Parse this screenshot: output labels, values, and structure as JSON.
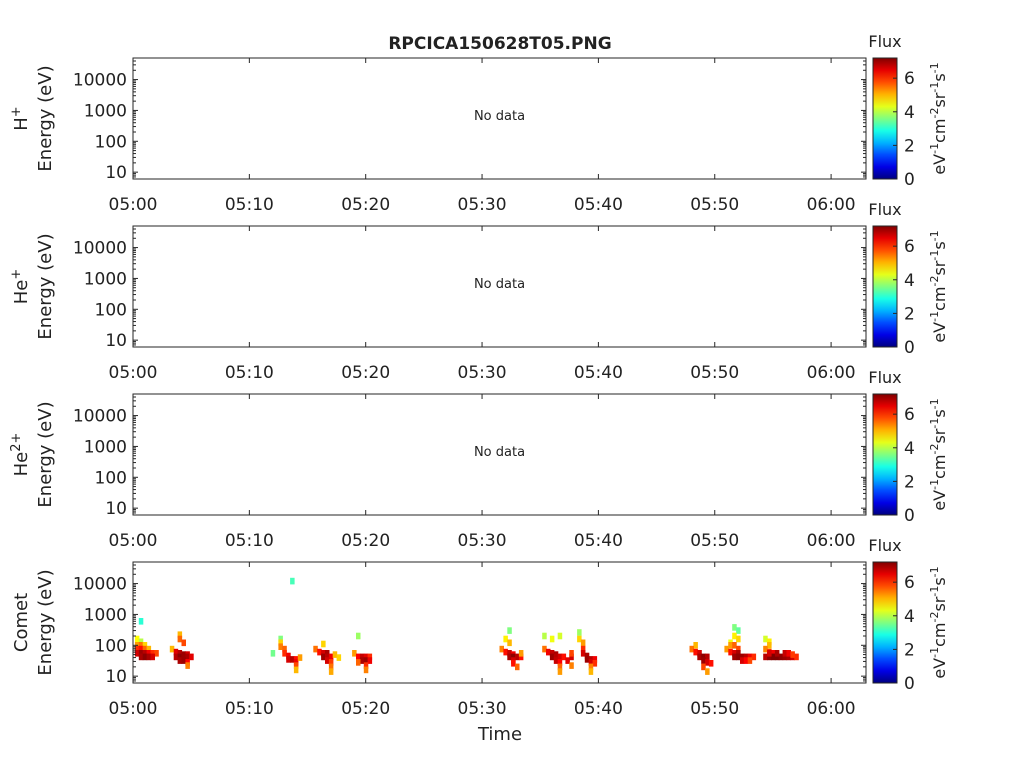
{
  "title": "RPCICA150628T05.PNG",
  "xlabel": "Time",
  "colorbar": {
    "title": "Flux",
    "unit_parts": [
      "eV",
      "-1",
      "cm",
      "-2",
      "sr",
      "-1",
      "s",
      "-1"
    ],
    "ticks": [
      "0",
      "2",
      "4",
      "6"
    ],
    "range": [
      0,
      7.2
    ],
    "colormap": "jet"
  },
  "chart_data": [
    {
      "type": "heatmap",
      "species": "H",
      "species_sup": "+",
      "ylabel": "Energy (eV)",
      "yscale": "log",
      "ylim": [
        6,
        50000
      ],
      "yticks": [
        "10",
        "100",
        "1000",
        "10000"
      ],
      "xlim": [
        "05:00",
        "06:03"
      ],
      "xticks": [
        "05:00",
        "05:10",
        "05:20",
        "05:30",
        "05:40",
        "05:50",
        "06:00"
      ],
      "annotation": "No data",
      "points": []
    },
    {
      "type": "heatmap",
      "species": "He",
      "species_sup": "+",
      "ylabel": "Energy (eV)",
      "yscale": "log",
      "ylim": [
        6,
        50000
      ],
      "yticks": [
        "10",
        "100",
        "1000",
        "10000"
      ],
      "xlim": [
        "05:00",
        "06:03"
      ],
      "xticks": [
        "05:00",
        "05:10",
        "05:20",
        "05:30",
        "05:40",
        "05:50",
        "06:00"
      ],
      "annotation": "No data",
      "points": []
    },
    {
      "type": "heatmap",
      "species": "He",
      "species_sup": "2+",
      "ylabel": "Energy (eV)",
      "yscale": "log",
      "ylim": [
        6,
        50000
      ],
      "yticks": [
        "10",
        "100",
        "1000",
        "10000"
      ],
      "xlim": [
        "05:00",
        "06:03"
      ],
      "xticks": [
        "05:00",
        "05:10",
        "05:20",
        "05:30",
        "05:40",
        "05:50",
        "06:00"
      ],
      "annotation": "No data",
      "points": []
    },
    {
      "type": "heatmap",
      "species": "Comet",
      "species_sup": "",
      "ylabel": "Energy (eV)",
      "yscale": "log",
      "ylim": [
        6,
        50000
      ],
      "yticks": [
        "10",
        "100",
        "1000",
        "10000"
      ],
      "xlim": [
        "05:00",
        "06:03"
      ],
      "xticks": [
        "05:00",
        "05:10",
        "05:20",
        "05:30",
        "05:40",
        "05:50",
        "06:00"
      ],
      "annotation": "",
      "points": [
        [
          "05:00:40",
          600,
          3.0
        ],
        [
          "05:00:20",
          160,
          4.5
        ],
        [
          "05:00:40",
          130,
          4.0
        ],
        [
          "05:00:20",
          100,
          5.2
        ],
        [
          "05:00:40",
          100,
          5.5
        ],
        [
          "05:01:00",
          100,
          4.8
        ],
        [
          "05:00:20",
          75,
          6.0
        ],
        [
          "05:00:40",
          75,
          6.2
        ],
        [
          "05:01:00",
          75,
          5.6
        ],
        [
          "05:01:20",
          75,
          5.0
        ],
        [
          "05:00:20",
          55,
          6.6
        ],
        [
          "05:00:40",
          55,
          7.0
        ],
        [
          "05:01:00",
          55,
          6.8
        ],
        [
          "05:01:20",
          55,
          6.4
        ],
        [
          "05:01:40",
          55,
          6.0
        ],
        [
          "05:02:00",
          55,
          5.8
        ],
        [
          "05:00:40",
          42,
          6.9
        ],
        [
          "05:01:00",
          42,
          7.1
        ],
        [
          "05:01:20",
          42,
          6.9
        ],
        [
          "05:01:40",
          42,
          6.6
        ],
        [
          "05:04:00",
          220,
          5.0
        ],
        [
          "05:04:00",
          160,
          5.6
        ],
        [
          "05:04:20",
          120,
          5.8
        ],
        [
          "05:03:20",
          75,
          5.0
        ],
        [
          "05:03:40",
          60,
          6.5
        ],
        [
          "05:04:00",
          55,
          6.8
        ],
        [
          "05:04:20",
          50,
          7.0
        ],
        [
          "05:04:40",
          50,
          6.6
        ],
        [
          "05:03:40",
          42,
          6.8
        ],
        [
          "05:04:00",
          42,
          7.1
        ],
        [
          "05:04:20",
          42,
          7.0
        ],
        [
          "05:04:40",
          42,
          6.9
        ],
        [
          "05:05:00",
          42,
          6.5
        ],
        [
          "05:04:00",
          32,
          6.9
        ],
        [
          "05:04:20",
          32,
          7.0
        ],
        [
          "05:04:40",
          28,
          6.3
        ],
        [
          "05:04:40",
          22,
          5.4
        ],
        [
          "05:13:40",
          12000,
          3.2
        ],
        [
          "05:12:00",
          55,
          3.5
        ],
        [
          "05:12:40",
          160,
          3.6
        ],
        [
          "05:12:40",
          120,
          4.8
        ],
        [
          "05:12:40",
          90,
          5.4
        ],
        [
          "05:13:00",
          75,
          5.6
        ],
        [
          "05:13:00",
          55,
          6.0
        ],
        [
          "05:13:20",
          45,
          6.4
        ],
        [
          "05:13:20",
          35,
          6.6
        ],
        [
          "05:13:40",
          35,
          6.8
        ],
        [
          "05:14:00",
          35,
          6.2
        ],
        [
          "05:14:00",
          28,
          6.4
        ],
        [
          "05:14:00",
          22,
          5.8
        ],
        [
          "05:14:00",
          16,
          5.0
        ],
        [
          "05:14:20",
          40,
          5.2
        ],
        [
          "05:16:20",
          110,
          4.8
        ],
        [
          "05:15:40",
          75,
          5.5
        ],
        [
          "05:16:00",
          60,
          6.2
        ],
        [
          "05:16:20",
          55,
          6.6
        ],
        [
          "05:16:40",
          55,
          6.9
        ],
        [
          "05:16:20",
          42,
          7.0
        ],
        [
          "05:16:40",
          42,
          6.8
        ],
        [
          "05:17:00",
          42,
          6.4
        ],
        [
          "05:16:40",
          32,
          6.6
        ],
        [
          "05:17:00",
          28,
          5.9
        ],
        [
          "05:17:00",
          20,
          5.5
        ],
        [
          "05:17:00",
          14,
          5.1
        ],
        [
          "05:17:20",
          50,
          5.0
        ],
        [
          "05:17:40",
          40,
          4.8
        ],
        [
          "05:19:20",
          200,
          3.8
        ],
        [
          "05:19:00",
          55,
          5.2
        ],
        [
          "05:19:20",
          42,
          6.3
        ],
        [
          "05:19:40",
          42,
          6.7
        ],
        [
          "05:20:00",
          42,
          6.5
        ],
        [
          "05:20:20",
          42,
          6.0
        ],
        [
          "05:19:40",
          32,
          6.9
        ],
        [
          "05:20:00",
          32,
          7.0
        ],
        [
          "05:20:20",
          32,
          6.4
        ],
        [
          "05:19:20",
          28,
          5.6
        ],
        [
          "05:20:00",
          22,
          6.0
        ],
        [
          "05:20:00",
          16,
          5.4
        ],
        [
          "05:32:20",
          300,
          3.6
        ],
        [
          "05:32:00",
          160,
          4.6
        ],
        [
          "05:32:20",
          120,
          5.0
        ],
        [
          "05:31:40",
          75,
          5.4
        ],
        [
          "05:32:00",
          60,
          6.2
        ],
        [
          "05:32:20",
          55,
          6.7
        ],
        [
          "05:32:40",
          50,
          6.4
        ],
        [
          "05:32:20",
          42,
          6.9
        ],
        [
          "05:32:40",
          42,
          7.1
        ],
        [
          "05:33:00",
          42,
          6.8
        ],
        [
          "05:33:20",
          42,
          6.2
        ],
        [
          "05:32:40",
          32,
          6.6
        ],
        [
          "05:32:40",
          26,
          6.2
        ],
        [
          "05:33:00",
          20,
          5.6
        ],
        [
          "05:33:20",
          55,
          5.2
        ],
        [
          "05:35:20",
          200,
          4.0
        ],
        [
          "05:36:40",
          200,
          4.2
        ],
        [
          "05:36:00",
          160,
          4.4
        ],
        [
          "05:35:20",
          75,
          5.5
        ],
        [
          "05:35:40",
          60,
          6.4
        ],
        [
          "05:36:00",
          55,
          6.7
        ],
        [
          "05:36:20",
          50,
          6.9
        ],
        [
          "05:36:00",
          42,
          7.0
        ],
        [
          "05:36:20",
          42,
          6.8
        ],
        [
          "05:36:40",
          42,
          6.6
        ],
        [
          "05:37:00",
          42,
          6.2
        ],
        [
          "05:36:20",
          32,
          6.7
        ],
        [
          "05:36:40",
          28,
          6.3
        ],
        [
          "05:36:40",
          20,
          5.6
        ],
        [
          "05:36:40",
          14,
          5.2
        ],
        [
          "05:37:20",
          32,
          6.5
        ],
        [
          "05:37:40",
          42,
          6.6
        ],
        [
          "05:37:40",
          55,
          5.8
        ],
        [
          "05:37:40",
          22,
          5.4
        ],
        [
          "05:38:20",
          260,
          3.8
        ],
        [
          "05:38:20",
          160,
          4.8
        ],
        [
          "05:38:40",
          120,
          5.2
        ],
        [
          "05:38:40",
          75,
          6.0
        ],
        [
          "05:38:40",
          55,
          6.6
        ],
        [
          "05:39:00",
          45,
          6.9
        ],
        [
          "05:39:00",
          35,
          7.0
        ],
        [
          "05:39:20",
          35,
          6.8
        ],
        [
          "05:39:40",
          35,
          6.4
        ],
        [
          "05:39:20",
          28,
          6.6
        ],
        [
          "05:39:40",
          26,
          6.0
        ],
        [
          "05:39:20",
          20,
          5.4
        ],
        [
          "05:39:20",
          14,
          5.0
        ],
        [
          "05:48:20",
          100,
          5.0
        ],
        [
          "05:48:00",
          75,
          5.5
        ],
        [
          "05:48:20",
          60,
          6.2
        ],
        [
          "05:48:40",
          55,
          6.6
        ],
        [
          "05:48:40",
          42,
          6.9
        ],
        [
          "05:49:00",
          42,
          7.1
        ],
        [
          "05:49:20",
          42,
          6.8
        ],
        [
          "05:49:00",
          32,
          7.0
        ],
        [
          "05:49:20",
          28,
          6.6
        ],
        [
          "05:49:40",
          26,
          6.2
        ],
        [
          "05:49:00",
          20,
          5.8
        ],
        [
          "05:49:20",
          14,
          5.2
        ],
        [
          "05:51:40",
          380,
          3.6
        ],
        [
          "05:52:00",
          300,
          3.4
        ],
        [
          "05:51:40",
          200,
          4.6
        ],
        [
          "05:52:00",
          160,
          4.8
        ],
        [
          "05:51:20",
          120,
          4.4
        ],
        [
          "05:51:20",
          100,
          5.2
        ],
        [
          "05:51:40",
          100,
          5.6
        ],
        [
          "05:52:00",
          75,
          5.8
        ],
        [
          "05:51:00",
          75,
          5.2
        ],
        [
          "05:51:20",
          60,
          6.2
        ],
        [
          "05:51:40",
          55,
          6.6
        ],
        [
          "05:52:00",
          55,
          6.9
        ],
        [
          "05:51:40",
          42,
          7.0
        ],
        [
          "05:52:00",
          42,
          7.1
        ],
        [
          "05:52:20",
          42,
          7.0
        ],
        [
          "05:52:40",
          42,
          6.8
        ],
        [
          "05:53:00",
          42,
          6.4
        ],
        [
          "05:53:20",
          42,
          6.0
        ],
        [
          "05:52:20",
          32,
          6.6
        ],
        [
          "05:52:40",
          32,
          6.3
        ],
        [
          "05:53:00",
          32,
          5.8
        ],
        [
          "05:54:20",
          160,
          4.2
        ],
        [
          "05:54:40",
          130,
          4.6
        ],
        [
          "05:54:40",
          100,
          5.0
        ],
        [
          "05:54:20",
          75,
          5.4
        ],
        [
          "05:54:40",
          60,
          5.9
        ],
        [
          "05:55:00",
          55,
          6.4
        ],
        [
          "05:54:20",
          42,
          6.8
        ],
        [
          "05:54:40",
          42,
          7.1
        ],
        [
          "05:55:00",
          42,
          7.2
        ],
        [
          "05:55:20",
          42,
          7.2
        ],
        [
          "05:55:40",
          42,
          7.1
        ],
        [
          "05:56:00",
          42,
          7.0
        ],
        [
          "05:56:20",
          42,
          6.9
        ],
        [
          "05:56:40",
          42,
          6.6
        ],
        [
          "05:57:00",
          42,
          6.0
        ],
        [
          "05:54:40",
          55,
          6.6
        ],
        [
          "05:55:20",
          55,
          6.9
        ],
        [
          "05:56:00",
          55,
          6.7
        ],
        [
          "05:56:20",
          55,
          6.4
        ],
        [
          "05:56:40",
          50,
          5.9
        ]
      ]
    }
  ]
}
